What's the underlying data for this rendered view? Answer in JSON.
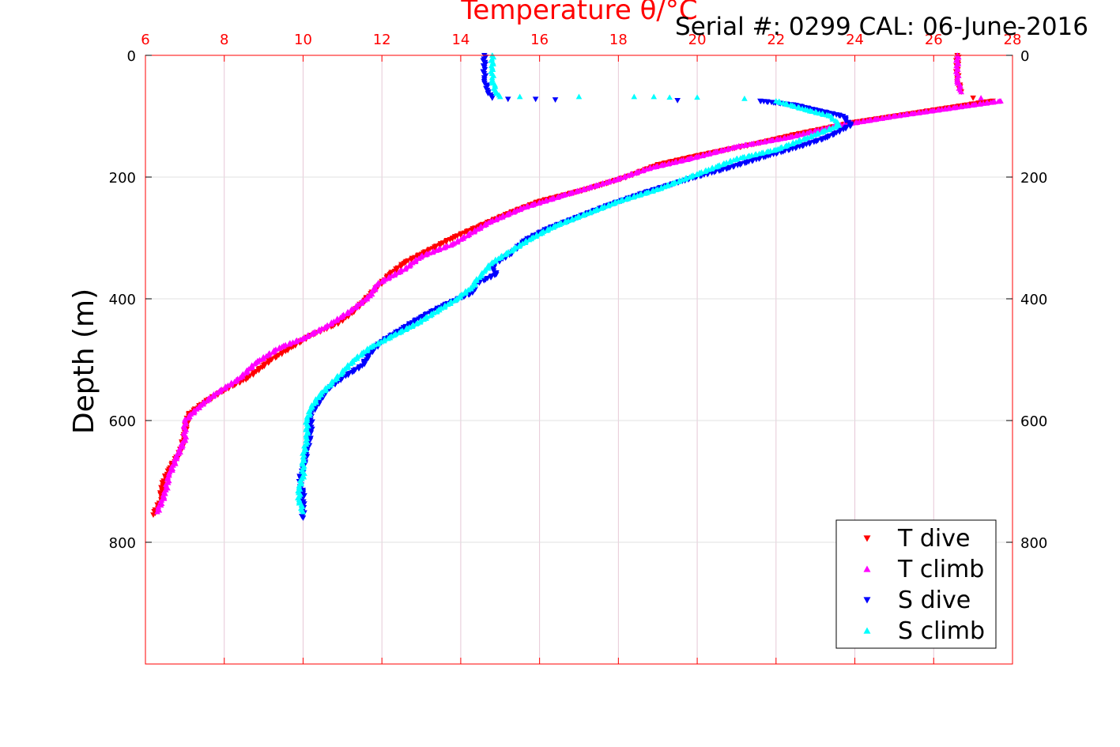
{
  "chart_data": {
    "type": "scatter",
    "title": "Temperature θ/°C",
    "subtitle": "Serial #: 0299 CAL: 06-June-2016",
    "xlabel": "Temperature θ/°C",
    "ylabel": "Depth (m)",
    "xlim": [
      6,
      28
    ],
    "ylim": [
      0,
      1000
    ],
    "y_reversed": true,
    "xticks": [
      "6",
      "8",
      "10",
      "12",
      "14",
      "16",
      "18",
      "20",
      "22",
      "24",
      "26",
      "28"
    ],
    "yticks": [
      "0",
      "200",
      "400",
      "600",
      "800"
    ],
    "grid": true,
    "legend_position": "bottom-right",
    "colors": {
      "t_axis": "#ff0000",
      "grid": "#e6c8d6"
    },
    "series": [
      {
        "name": "T dive",
        "marker": "triangle-down",
        "color": "#ff0000",
        "points": [
          [
            26.6,
            0
          ],
          [
            26.6,
            20
          ],
          [
            26.6,
            40
          ],
          [
            26.7,
            60
          ],
          [
            27.0,
            70
          ],
          [
            27.5,
            75
          ],
          [
            26.5,
            85
          ],
          [
            25.5,
            95
          ],
          [
            24.0,
            110
          ],
          [
            22.5,
            130
          ],
          [
            21.5,
            145
          ],
          [
            20.0,
            165
          ],
          [
            19.0,
            180
          ],
          [
            18.2,
            200
          ],
          [
            17.2,
            220
          ],
          [
            16.0,
            240
          ],
          [
            15.2,
            260
          ],
          [
            14.5,
            280
          ],
          [
            13.8,
            300
          ],
          [
            13.2,
            320
          ],
          [
            12.6,
            340
          ],
          [
            12.2,
            360
          ],
          [
            11.9,
            380
          ],
          [
            11.6,
            400
          ],
          [
            11.3,
            420
          ],
          [
            10.9,
            440
          ],
          [
            10.2,
            460
          ],
          [
            9.7,
            480
          ],
          [
            9.2,
            500
          ],
          [
            8.6,
            530
          ],
          [
            8.0,
            550
          ],
          [
            7.5,
            570
          ],
          [
            7.1,
            590
          ],
          [
            7.0,
            620
          ],
          [
            6.9,
            650
          ],
          [
            6.6,
            680
          ],
          [
            6.4,
            710
          ],
          [
            6.4,
            730
          ],
          [
            6.2,
            755
          ]
        ]
      },
      {
        "name": "T climb",
        "marker": "triangle-up",
        "color": "#ff00ff",
        "points": [
          [
            26.6,
            0
          ],
          [
            26.6,
            20
          ],
          [
            26.6,
            40
          ],
          [
            26.7,
            60
          ],
          [
            27.2,
            70
          ],
          [
            27.7,
            75
          ],
          [
            26.3,
            88
          ],
          [
            25.0,
            100
          ],
          [
            23.6,
            115
          ],
          [
            22.3,
            135
          ],
          [
            21.0,
            150
          ],
          [
            19.8,
            170
          ],
          [
            18.8,
            185
          ],
          [
            17.9,
            205
          ],
          [
            16.6,
            230
          ],
          [
            15.6,
            250
          ],
          [
            14.7,
            275
          ],
          [
            13.8,
            310
          ],
          [
            13.0,
            330
          ],
          [
            12.6,
            350
          ],
          [
            11.9,
            375
          ],
          [
            11.7,
            395
          ],
          [
            11.2,
            420
          ],
          [
            10.6,
            445
          ],
          [
            10.0,
            465
          ],
          [
            9.4,
            480
          ],
          [
            8.8,
            505
          ],
          [
            8.4,
            530
          ],
          [
            7.8,
            555
          ],
          [
            7.4,
            575
          ],
          [
            7.0,
            600
          ],
          [
            7.0,
            630
          ],
          [
            6.8,
            660
          ],
          [
            6.6,
            690
          ],
          [
            6.5,
            720
          ],
          [
            6.3,
            750
          ]
        ]
      },
      {
        "name": "S dive",
        "marker": "triangle-down",
        "color": "#0000ff",
        "points": [
          [
            14.6,
            0
          ],
          [
            14.6,
            20
          ],
          [
            14.6,
            40
          ],
          [
            14.7,
            60
          ],
          [
            14.8,
            70
          ],
          [
            15.2,
            72
          ],
          [
            15.9,
            72
          ],
          [
            16.4,
            73
          ],
          [
            19.5,
            74
          ],
          [
            21.6,
            75
          ],
          [
            22.5,
            82
          ],
          [
            23.0,
            90
          ],
          [
            23.7,
            100
          ],
          [
            23.9,
            115
          ],
          [
            23.3,
            135
          ],
          [
            22.6,
            150
          ],
          [
            21.8,
            165
          ],
          [
            20.8,
            185
          ],
          [
            19.7,
            205
          ],
          [
            18.7,
            225
          ],
          [
            17.8,
            245
          ],
          [
            17.0,
            265
          ],
          [
            16.2,
            285
          ],
          [
            15.6,
            305
          ],
          [
            15.3,
            325
          ],
          [
            14.8,
            345
          ],
          [
            14.9,
            360
          ],
          [
            14.4,
            375
          ],
          [
            14.3,
            390
          ],
          [
            13.6,
            410
          ],
          [
            13.0,
            430
          ],
          [
            12.5,
            450
          ],
          [
            12.0,
            470
          ],
          [
            11.7,
            490
          ],
          [
            11.5,
            510
          ],
          [
            11.0,
            530
          ],
          [
            10.6,
            550
          ],
          [
            10.4,
            570
          ],
          [
            10.2,
            590
          ],
          [
            10.2,
            620
          ],
          [
            10.1,
            650
          ],
          [
            10.0,
            680
          ],
          [
            9.9,
            700
          ],
          [
            10.0,
            720
          ],
          [
            10.0,
            740
          ],
          [
            10.0,
            760
          ]
        ]
      },
      {
        "name": "S climb",
        "marker": "triangle-up",
        "color": "#00ffff",
        "points": [
          [
            14.8,
            0
          ],
          [
            14.8,
            20
          ],
          [
            14.8,
            40
          ],
          [
            14.9,
            60
          ],
          [
            15.0,
            68
          ],
          [
            15.5,
            68
          ],
          [
            17.0,
            68
          ],
          [
            18.4,
            68
          ],
          [
            18.9,
            68
          ],
          [
            19.3,
            69
          ],
          [
            20.0,
            69
          ],
          [
            21.2,
            71
          ],
          [
            22.0,
            75
          ],
          [
            22.8,
            90
          ],
          [
            23.4,
            100
          ],
          [
            23.6,
            115
          ],
          [
            22.8,
            135
          ],
          [
            22.0,
            155
          ],
          [
            21.0,
            170
          ],
          [
            20.0,
            195
          ],
          [
            19.0,
            220
          ],
          [
            18.0,
            240
          ],
          [
            17.2,
            260
          ],
          [
            16.4,
            280
          ],
          [
            15.8,
            300
          ],
          [
            15.3,
            320
          ],
          [
            14.8,
            340
          ],
          [
            14.6,
            355
          ],
          [
            14.4,
            370
          ],
          [
            14.3,
            380
          ],
          [
            13.9,
            400
          ],
          [
            13.4,
            420
          ],
          [
            12.9,
            440
          ],
          [
            12.3,
            460
          ],
          [
            11.7,
            480
          ],
          [
            11.3,
            500
          ],
          [
            11.0,
            520
          ],
          [
            10.7,
            540
          ],
          [
            10.4,
            560
          ],
          [
            10.2,
            580
          ],
          [
            10.1,
            600
          ],
          [
            10.1,
            630
          ],
          [
            10.0,
            660
          ],
          [
            10.0,
            690
          ],
          [
            9.9,
            710
          ],
          [
            9.9,
            730
          ],
          [
            10.0,
            750
          ]
        ]
      }
    ]
  }
}
